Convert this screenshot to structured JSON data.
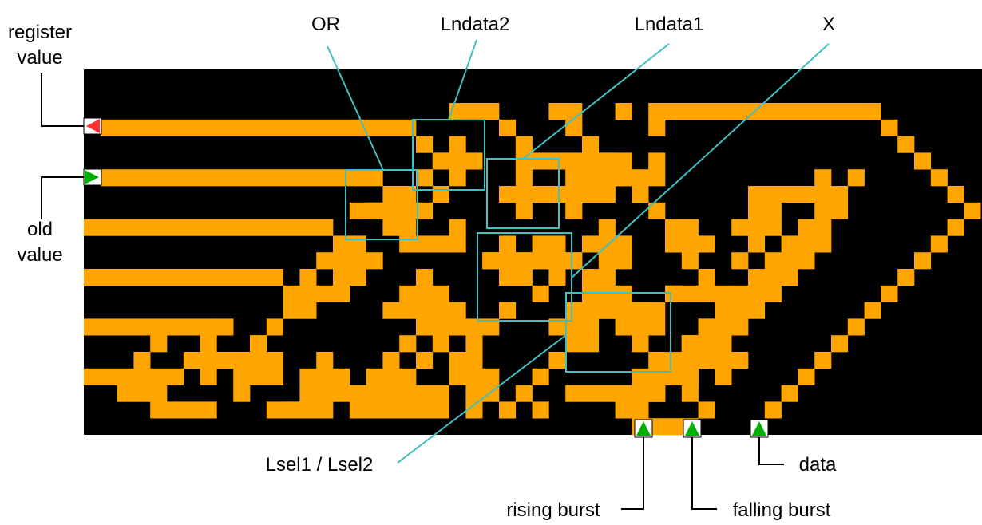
{
  "labels": {
    "register_value_line1": "register",
    "register_value_line2": "value",
    "old_value_line1": "old",
    "old_value_line2": "value",
    "or": "OR",
    "lndata2": "Lndata2",
    "lndata1": "Lndata1",
    "x": "X",
    "lsel": "Lsel1 / Lsel2",
    "rising_burst": "rising burst",
    "falling_burst": "falling burst",
    "data": "data"
  },
  "colors": {
    "background": "#000000",
    "wire": "#FFA500",
    "highlight_box": "#40C0C0",
    "input_green": "#00B000",
    "input_red": "#FF3030"
  }
}
